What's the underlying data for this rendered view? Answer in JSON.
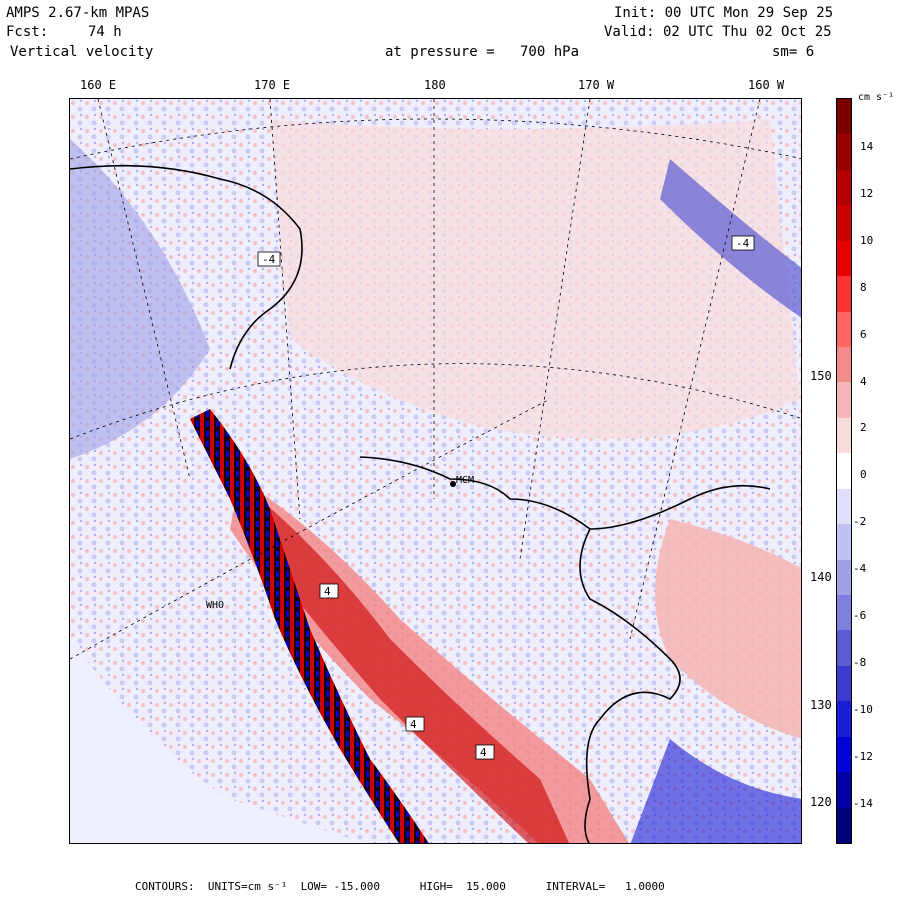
{
  "header": {
    "model": "AMPS 2.67-km MPAS",
    "fcst_label": "Fcst:",
    "fcst_value": "74 h",
    "field": "Vertical velocity",
    "init": "Init: 00 UTC Mon 29 Sep 25",
    "valid": "Valid: 02 UTC Thu 02 Oct 25",
    "level_label": "at pressure =",
    "level_value": "700 hPa",
    "smoothing": "sm= 6"
  },
  "top_longitudes": [
    "160 E",
    "170 E",
    "180",
    "170 W",
    "160 W"
  ],
  "right_longitudes": [
    "150 W",
    "140 W",
    "130 W",
    "120 W"
  ],
  "stations": [
    "MCM",
    "WHO"
  ],
  "contour_labels": [
    "-4",
    "4"
  ],
  "colorbar": {
    "unit": "cm s⁻¹",
    "ticks": [
      "14",
      "12",
      "10",
      "8",
      "6",
      "4",
      "2",
      "0",
      "-2",
      "-4",
      "-6",
      "-8",
      "-10",
      "-12",
      "-14"
    ],
    "colors": [
      "#7a0000",
      "#990000",
      "#b30000",
      "#cc0000",
      "#e60000",
      "#ff3333",
      "#ff6666",
      "#f28b8b",
      "#f5b7b7",
      "#f9dddd",
      "#ffffff",
      "#e0e0fb",
      "#c2c2f2",
      "#a0a0e8",
      "#7f7fdc",
      "#5c5cd1",
      "#3b3bd0",
      "#1c1cd6",
      "#0000d8",
      "#0000a6",
      "#00007a"
    ]
  },
  "footer": "CONTOURS:  UNITS=cm s⁻¹  LOW= -15.000      HIGH=  15.000      INTERVAL=   1.0000"
}
